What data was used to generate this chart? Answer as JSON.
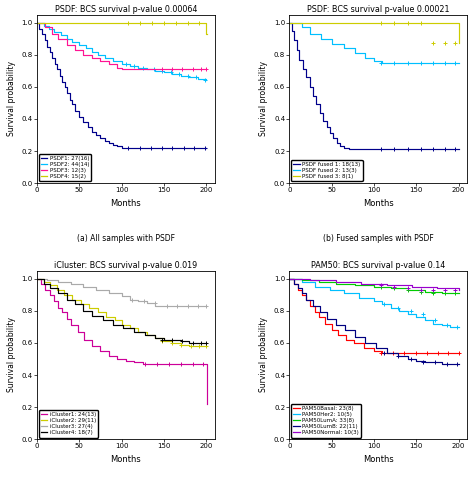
{
  "subplot_titles": [
    "PSDF: BCS survival p-value 0.00064",
    "PSDF: BCS survival p-value 0.00021",
    "iCluster: BCS survival p-value 0.019",
    "PAM50: BCS survival p-value 0.14"
  ],
  "subplot_captions": [
    "(a) All samples with PSDF",
    "(b) Fused samples with PSDF",
    "(c) All samples with iCluster",
    "(d) All samples with PAM50"
  ],
  "psdf_curves": [
    {
      "label": "PSDF1: 27(16)",
      "color": "#00008B",
      "times": [
        0,
        3,
        6,
        9,
        12,
        15,
        18,
        21,
        24,
        27,
        30,
        33,
        36,
        39,
        42,
        45,
        50,
        55,
        60,
        65,
        70,
        75,
        80,
        85,
        90,
        95,
        100,
        105,
        110,
        120,
        130,
        140,
        150,
        160,
        170,
        180,
        190,
        200
      ],
      "surv": [
        1.0,
        0.96,
        0.93,
        0.89,
        0.85,
        0.82,
        0.78,
        0.74,
        0.71,
        0.67,
        0.63,
        0.6,
        0.56,
        0.52,
        0.49,
        0.45,
        0.41,
        0.38,
        0.35,
        0.32,
        0.3,
        0.28,
        0.26,
        0.25,
        0.24,
        0.23,
        0.22,
        0.22,
        0.22,
        0.22,
        0.22,
        0.22,
        0.22,
        0.22,
        0.22,
        0.22,
        0.22,
        0.22
      ],
      "censor_times": [
        108,
        122,
        135,
        148,
        160,
        174,
        186,
        198
      ],
      "censor_surv": [
        0.22,
        0.22,
        0.22,
        0.22,
        0.22,
        0.22,
        0.22,
        0.22
      ]
    },
    {
      "label": "PSDF2: 44(14)",
      "color": "#00BFFF",
      "times": [
        0,
        8,
        14,
        20,
        28,
        35,
        42,
        50,
        58,
        65,
        72,
        80,
        90,
        100,
        110,
        120,
        130,
        140,
        150,
        160,
        170,
        180,
        190,
        200
      ],
      "surv": [
        1.0,
        0.98,
        0.96,
        0.94,
        0.92,
        0.9,
        0.88,
        0.86,
        0.84,
        0.82,
        0.8,
        0.78,
        0.76,
        0.74,
        0.73,
        0.72,
        0.71,
        0.7,
        0.69,
        0.68,
        0.67,
        0.66,
        0.65,
        0.64
      ],
      "censor_times": [
        105,
        115,
        125,
        138,
        148,
        158,
        168,
        178,
        188,
        198
      ],
      "censor_surv": [
        0.74,
        0.73,
        0.72,
        0.71,
        0.7,
        0.69,
        0.68,
        0.67,
        0.66,
        0.64
      ]
    },
    {
      "label": "PSDF3: 12(3)",
      "color": "#FF1493",
      "times": [
        0,
        10,
        18,
        25,
        35,
        45,
        55,
        65,
        75,
        85,
        95,
        100,
        110,
        120,
        130,
        140,
        150,
        160,
        170,
        180,
        190,
        200
      ],
      "surv": [
        1.0,
        0.97,
        0.93,
        0.9,
        0.86,
        0.83,
        0.8,
        0.78,
        0.76,
        0.74,
        0.72,
        0.71,
        0.71,
        0.71,
        0.71,
        0.71,
        0.71,
        0.71,
        0.71,
        0.71,
        0.71,
        0.71
      ],
      "censor_times": [
        148,
        160,
        172,
        184,
        194,
        200
      ],
      "censor_surv": [
        0.71,
        0.71,
        0.71,
        0.71,
        0.71,
        0.71
      ]
    },
    {
      "label": "PSDF4: 15(2)",
      "color": "#CCCC00",
      "times": [
        0,
        100,
        200,
        201
      ],
      "surv": [
        1.0,
        1.0,
        0.93,
        0.93
      ],
      "censor_times": [
        108,
        122,
        136,
        150,
        164,
        178,
        192
      ],
      "censor_surv": [
        1.0,
        1.0,
        1.0,
        1.0,
        1.0,
        1.0,
        1.0
      ]
    }
  ],
  "fused_curves": [
    {
      "label": "PSDF fused 1: 18(13)",
      "color": "#00008B",
      "times": [
        0,
        3,
        6,
        9,
        12,
        16,
        20,
        24,
        28,
        32,
        36,
        40,
        44,
        48,
        52,
        56,
        60,
        65,
        70,
        75,
        80,
        90,
        100,
        110,
        120,
        130,
        140,
        150,
        160,
        170,
        180,
        190,
        200
      ],
      "surv": [
        1.0,
        0.95,
        0.89,
        0.83,
        0.77,
        0.71,
        0.66,
        0.6,
        0.54,
        0.49,
        0.44,
        0.39,
        0.35,
        0.31,
        0.28,
        0.25,
        0.23,
        0.22,
        0.21,
        0.21,
        0.21,
        0.21,
        0.21,
        0.21,
        0.21,
        0.21,
        0.21,
        0.21,
        0.21,
        0.21,
        0.21,
        0.21,
        0.21
      ],
      "censor_times": [
        108,
        124,
        140,
        156,
        170,
        184,
        196
      ],
      "censor_surv": [
        0.21,
        0.21,
        0.21,
        0.21,
        0.21,
        0.21,
        0.21
      ]
    },
    {
      "label": "PSDF fused 2: 13(3)",
      "color": "#00BFFF",
      "times": [
        0,
        15,
        25,
        38,
        50,
        65,
        78,
        90,
        100,
        110,
        120,
        130,
        140,
        150,
        160,
        170,
        180,
        190,
        200
      ],
      "surv": [
        1.0,
        0.97,
        0.93,
        0.9,
        0.87,
        0.84,
        0.81,
        0.78,
        0.76,
        0.75,
        0.75,
        0.75,
        0.75,
        0.75,
        0.75,
        0.75,
        0.75,
        0.75,
        0.75
      ],
      "censor_times": [
        108,
        124,
        140,
        156,
        170,
        184,
        196
      ],
      "censor_surv": [
        0.75,
        0.75,
        0.75,
        0.75,
        0.75,
        0.75,
        0.75
      ]
    },
    {
      "label": "PSDF fused 3: 8(1)",
      "color": "#CCCC00",
      "times": [
        0,
        100,
        200,
        201
      ],
      "surv": [
        1.0,
        1.0,
        0.875,
        0.875
      ],
      "censor_times": [
        108,
        124,
        140,
        156,
        170,
        184,
        196
      ],
      "censor_surv": [
        1.0,
        1.0,
        1.0,
        1.0,
        0.875,
        0.875,
        0.875
      ]
    }
  ],
  "icluster_curves": [
    {
      "label": "iCluster1: 24(13)",
      "color": "#CC0099",
      "times": [
        0,
        5,
        10,
        15,
        20,
        25,
        30,
        35,
        40,
        48,
        56,
        65,
        75,
        85,
        95,
        105,
        115,
        125,
        135,
        145,
        155,
        165,
        175,
        185,
        195,
        200,
        201
      ],
      "surv": [
        1.0,
        0.97,
        0.93,
        0.9,
        0.86,
        0.82,
        0.79,
        0.75,
        0.71,
        0.67,
        0.62,
        0.58,
        0.55,
        0.52,
        0.5,
        0.49,
        0.48,
        0.47,
        0.47,
        0.47,
        0.47,
        0.47,
        0.47,
        0.47,
        0.47,
        0.47,
        0.22
      ],
      "censor_times": [
        128,
        142,
        156,
        170,
        184,
        196
      ],
      "censor_surv": [
        0.47,
        0.47,
        0.47,
        0.47,
        0.47,
        0.47
      ]
    },
    {
      "label": "iCluster2: 29(11)",
      "color": "#CCCC00",
      "times": [
        0,
        8,
        16,
        24,
        32,
        42,
        52,
        62,
        72,
        82,
        92,
        100,
        110,
        120,
        130,
        140,
        150,
        160,
        170,
        180,
        190,
        200
      ],
      "surv": [
        1.0,
        0.98,
        0.96,
        0.93,
        0.9,
        0.87,
        0.84,
        0.82,
        0.79,
        0.76,
        0.74,
        0.71,
        0.69,
        0.67,
        0.65,
        0.63,
        0.61,
        0.6,
        0.59,
        0.58,
        0.58,
        0.58
      ],
      "censor_times": [
        148,
        160,
        170,
        182,
        192,
        200
      ],
      "censor_surv": [
        0.61,
        0.6,
        0.59,
        0.58,
        0.58,
        0.58
      ]
    },
    {
      "label": "iCluster3: 27(4)",
      "color": "#AAAAAA",
      "times": [
        0,
        12,
        25,
        40,
        55,
        70,
        85,
        100,
        110,
        120,
        130,
        140,
        150,
        160,
        170,
        180,
        190,
        200
      ],
      "surv": [
        1.0,
        0.99,
        0.98,
        0.97,
        0.95,
        0.93,
        0.91,
        0.89,
        0.87,
        0.86,
        0.85,
        0.83,
        0.83,
        0.83,
        0.83,
        0.83,
        0.83,
        0.83
      ],
      "censor_times": [
        112,
        126,
        140,
        154,
        166,
        178,
        190,
        200
      ],
      "censor_surv": [
        0.87,
        0.86,
        0.85,
        0.83,
        0.83,
        0.83,
        0.83,
        0.83
      ]
    },
    {
      "label": "iCluster4: 18(7)",
      "color": "#000000",
      "times": [
        0,
        8,
        16,
        25,
        35,
        45,
        55,
        65,
        78,
        90,
        102,
        115,
        128,
        140,
        150,
        160,
        170,
        180,
        190,
        200
      ],
      "surv": [
        1.0,
        0.97,
        0.94,
        0.91,
        0.87,
        0.84,
        0.8,
        0.77,
        0.74,
        0.71,
        0.69,
        0.67,
        0.65,
        0.63,
        0.62,
        0.62,
        0.61,
        0.6,
        0.6,
        0.6
      ],
      "censor_times": [
        148,
        160,
        172,
        184,
        194,
        200
      ],
      "censor_surv": [
        0.62,
        0.62,
        0.61,
        0.6,
        0.6,
        0.6
      ]
    }
  ],
  "pam50_curves": [
    {
      "label": "PAM50Basal: 23(8)",
      "color": "#FF0000",
      "times": [
        0,
        5,
        10,
        15,
        20,
        25,
        30,
        35,
        42,
        50,
        58,
        67,
        77,
        88,
        100,
        110,
        120,
        130,
        140,
        150,
        160,
        170,
        180,
        190,
        200
      ],
      "surv": [
        1.0,
        0.97,
        0.93,
        0.9,
        0.87,
        0.83,
        0.79,
        0.76,
        0.72,
        0.68,
        0.65,
        0.62,
        0.6,
        0.57,
        0.55,
        0.54,
        0.54,
        0.54,
        0.54,
        0.54,
        0.54,
        0.54,
        0.54,
        0.54,
        0.54
      ],
      "censor_times": [
        108,
        122,
        136,
        150,
        163,
        176,
        188,
        200
      ],
      "censor_surv": [
        0.54,
        0.54,
        0.54,
        0.54,
        0.54,
        0.54,
        0.54,
        0.54
      ]
    },
    {
      "label": "PAM50Her2: 10(5)",
      "color": "#00BFFF",
      "times": [
        0,
        15,
        30,
        48,
        65,
        82,
        100,
        110,
        120,
        130,
        140,
        150,
        160,
        170,
        180,
        190,
        200
      ],
      "surv": [
        1.0,
        0.98,
        0.95,
        0.93,
        0.91,
        0.88,
        0.86,
        0.84,
        0.82,
        0.8,
        0.78,
        0.76,
        0.74,
        0.72,
        0.71,
        0.7,
        0.7
      ],
      "censor_times": [
        112,
        128,
        144,
        158,
        172,
        186,
        198
      ],
      "censor_surv": [
        0.84,
        0.82,
        0.8,
        0.78,
        0.74,
        0.71,
        0.7
      ]
    },
    {
      "label": "PAM50LumA: 33(8)",
      "color": "#00CC00",
      "times": [
        0,
        15,
        35,
        55,
        78,
        100,
        120,
        140,
        160,
        180,
        200
      ],
      "surv": [
        1.0,
        0.99,
        0.98,
        0.97,
        0.96,
        0.95,
        0.94,
        0.93,
        0.92,
        0.91,
        0.91
      ],
      "censor_times": [
        108,
        124,
        140,
        156,
        170,
        184,
        196
      ],
      "censor_surv": [
        0.95,
        0.94,
        0.93,
        0.92,
        0.91,
        0.91,
        0.91
      ]
    },
    {
      "label": "PAM50LumB: 22(11)",
      "color": "#000080",
      "times": [
        0,
        5,
        10,
        15,
        20,
        28,
        36,
        45,
        55,
        66,
        78,
        90,
        103,
        115,
        128,
        140,
        150,
        160,
        170,
        180,
        190,
        200
      ],
      "surv": [
        1.0,
        0.97,
        0.94,
        0.91,
        0.87,
        0.83,
        0.79,
        0.75,
        0.71,
        0.68,
        0.64,
        0.6,
        0.57,
        0.54,
        0.52,
        0.5,
        0.49,
        0.48,
        0.48,
        0.47,
        0.47,
        0.47
      ],
      "censor_times": [
        112,
        128,
        144,
        158,
        172,
        186,
        198
      ],
      "censor_surv": [
        0.54,
        0.52,
        0.5,
        0.48,
        0.48,
        0.47,
        0.47
      ]
    },
    {
      "label": "PAM50Normal: 10(3)",
      "color": "#9900CC",
      "times": [
        0,
        25,
        55,
        85,
        115,
        145,
        175,
        200,
        201
      ],
      "surv": [
        1.0,
        0.99,
        0.98,
        0.97,
        0.96,
        0.95,
        0.94,
        0.93,
        0.93
      ],
      "censor_times": [
        108,
        124,
        140,
        156,
        170,
        184,
        196
      ],
      "censor_surv": [
        0.96,
        0.95,
        0.94,
        0.93,
        0.93,
        0.93,
        0.93
      ]
    }
  ],
  "background_color": "#FFFFFF"
}
